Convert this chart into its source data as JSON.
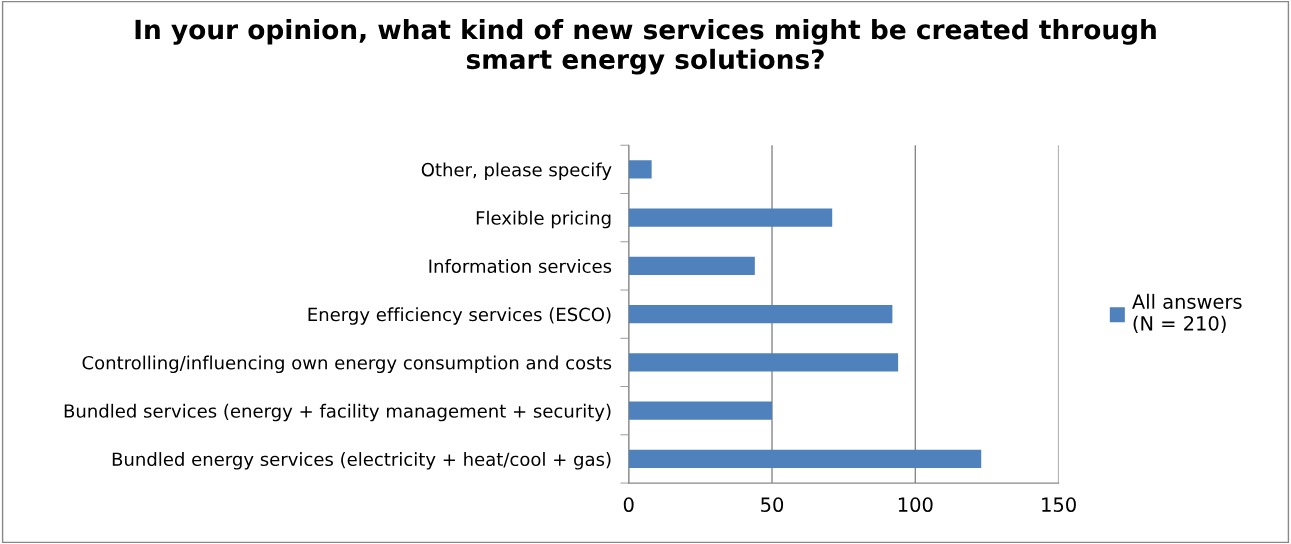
{
  "chart_data": {
    "type": "bar",
    "orientation": "horizontal",
    "title": "In your opinion, what kind of new services might be created through\nsmart energy solutions?",
    "categories": [
      "Other, please specify",
      "Flexible pricing",
      "Information services",
      "Energy efficiency services (ESCO)",
      "Controlling/influencing own energy consumption and costs",
      "Bundled services (energy + facility management + security)",
      "Bundled energy services (electricity + heat/cool + gas)"
    ],
    "series": [
      {
        "name": "All answers\n(N = 210)",
        "color": "#4f81bd",
        "values": [
          8,
          71,
          44,
          92,
          94,
          50,
          123
        ]
      }
    ],
    "xlim": [
      0,
      150
    ],
    "xticks": [
      0,
      50,
      100,
      150
    ],
    "grid": "x",
    "legend": "right"
  }
}
